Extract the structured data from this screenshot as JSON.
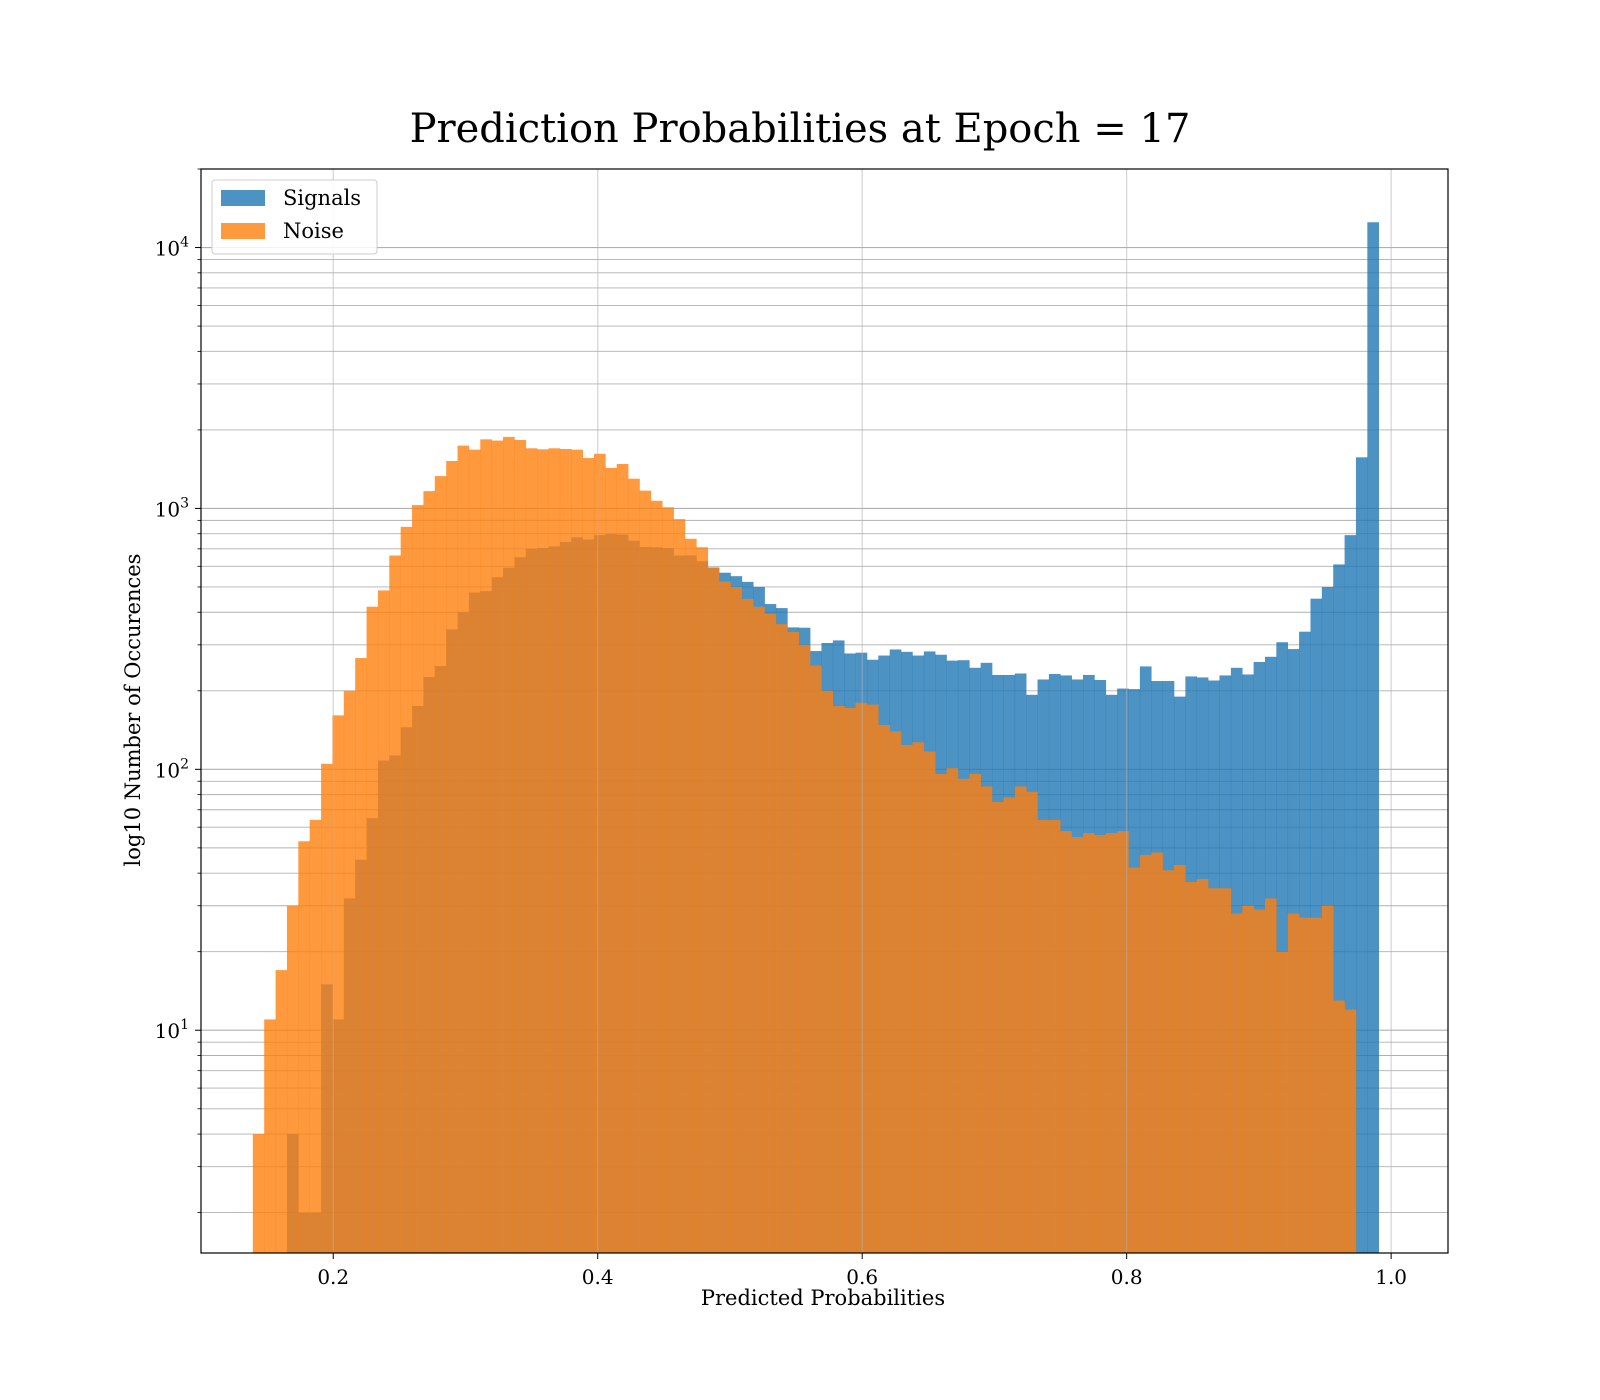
{
  "chart_data": {
    "type": "bar",
    "title": "Prediction Probabilities at Epoch = 17",
    "xlabel": "Predicted Probabilities",
    "ylabel": "log10 Number of Occurences",
    "xlim": [
      0.1,
      1.043
    ],
    "ylim": [
      1.4,
      20000
    ],
    "yscale": "log",
    "grid": true,
    "legend_position": "top-left",
    "bin_start": 0.1392,
    "bin_width": 0.0086,
    "xticks": [
      "0.2",
      "0.4",
      "0.6",
      "0.8",
      "1.0"
    ],
    "yticks": [
      {
        "base": "10",
        "exp": "1",
        "value": 10
      },
      {
        "base": "10",
        "exp": "2",
        "value": 100
      },
      {
        "base": "10",
        "exp": "3",
        "value": 1000
      },
      {
        "base": "10",
        "exp": "4",
        "value": 10000
      }
    ],
    "series": [
      {
        "name": "Signals",
        "color": "#1f77b4",
        "values": [
          0,
          0,
          0,
          4,
          2,
          2,
          15,
          11,
          32,
          45,
          65,
          108,
          113,
          145,
          175,
          226,
          249,
          344,
          400,
          476,
          482,
          545,
          593,
          650,
          700,
          705,
          715,
          744,
          775,
          760,
          790,
          800,
          794,
          752,
          712,
          710,
          705,
          660,
          661,
          628,
          591,
          567,
          550,
          523,
          500,
          430,
          415,
          350,
          349,
          284,
          305,
          312,
          278,
          280,
          263,
          273,
          288,
          282,
          273,
          283,
          275,
          261,
          262,
          245,
          256,
          230,
          230,
          233,
          193,
          221,
          232,
          229,
          221,
          230,
          220,
          193,
          204,
          203,
          248,
          218,
          218,
          190,
          227,
          225,
          219,
          229,
          245,
          231,
          258,
          270,
          307,
          289,
          337,
          451,
          500,
          610,
          790,
          1570,
          12500
        ]
      },
      {
        "name": "Noise",
        "color": "#ff7f0e",
        "values": [
          4,
          11,
          17,
          30,
          53,
          64,
          105,
          161,
          200,
          267,
          420,
          485,
          660,
          850,
          1030,
          1165,
          1330,
          1520,
          1740,
          1680,
          1840,
          1820,
          1880,
          1830,
          1700,
          1685,
          1700,
          1690,
          1680,
          1560,
          1620,
          1430,
          1480,
          1300,
          1170,
          1070,
          1010,
          910,
          765,
          710,
          595,
          525,
          500,
          450,
          420,
          395,
          360,
          336,
          300,
          250,
          200,
          175,
          172,
          180,
          177,
          148,
          140,
          124,
          127,
          117,
          96,
          101,
          92,
          96,
          86,
          75,
          78,
          86,
          82,
          64,
          64,
          58,
          55,
          57,
          56,
          57,
          58,
          42,
          47,
          48,
          41,
          43,
          37,
          38,
          35,
          35,
          28,
          30,
          29,
          32,
          20,
          28,
          27,
          27,
          30,
          13,
          12
        ]
      }
    ]
  }
}
